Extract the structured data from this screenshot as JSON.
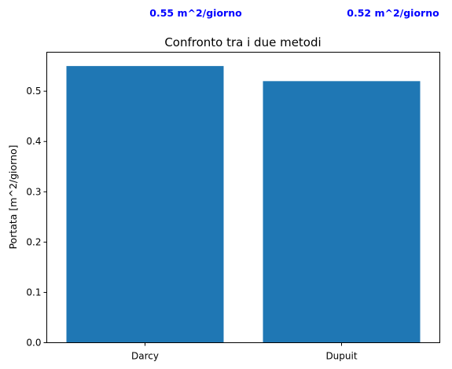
{
  "chart_data": {
    "type": "bar",
    "title": "Confronto tra i due metodi",
    "xlabel": "",
    "ylabel": "Portata [m^2/giorno]",
    "categories": [
      "Darcy",
      "Dupuit"
    ],
    "values": [
      0.55,
      0.52
    ],
    "ylim": [
      0,
      0.5775
    ],
    "yticks": [
      0.0,
      0.1,
      0.2,
      0.3,
      0.4,
      0.5
    ],
    "ytick_labels": [
      "0.0",
      "0.1",
      "0.2",
      "0.3",
      "0.4",
      "0.5"
    ],
    "bar_color": "#1f77b4",
    "annotation_color": "#0000ff",
    "annotations": [
      "0.55 m^2/giorno",
      "0.52 m^2/giorno"
    ],
    "grid": false,
    "legend": "none"
  }
}
